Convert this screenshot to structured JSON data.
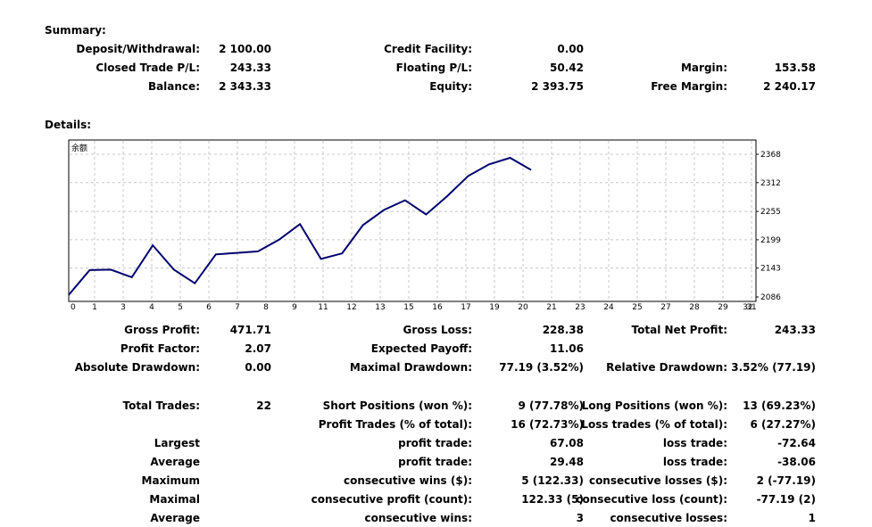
{
  "summary": {
    "title": "Summary:",
    "deposit_label": "Deposit/Withdrawal:",
    "deposit_value": "2 100.00",
    "credit_label": "Credit Facility:",
    "credit_value": "0.00",
    "closed_label": "Closed Trade P/L:",
    "closed_value": "243.33",
    "floating_label": "Floating P/L:",
    "floating_value": "50.42",
    "margin_label": "Margin:",
    "margin_value": "153.58",
    "balance_label": "Balance:",
    "balance_value": "2 343.33",
    "equity_label": "Equity:",
    "equity_value": "2 393.75",
    "free_margin_label": "Free Margin:",
    "free_margin_value": "2 240.17"
  },
  "details": {
    "title": "Details:"
  },
  "chart_data": {
    "type": "line",
    "title": "余额",
    "xlabel": "",
    "ylabel": "",
    "x_ticks": [
      0,
      1,
      3,
      4,
      5,
      6,
      7,
      8,
      9,
      11,
      12,
      13,
      15,
      16,
      17,
      19,
      20,
      21,
      23,
      24,
      25,
      27,
      28,
      29,
      31,
      32
    ],
    "y_ticks": [
      2368,
      2312,
      2255,
      2199,
      2143,
      2086
    ],
    "grid": true,
    "line_color": "#00006e",
    "series": [
      {
        "values": [
          2090,
          2139,
          2140,
          2125,
          2188,
          2140,
          2113,
          2170,
          2173,
          2176,
          2199,
          2230,
          2161,
          2172,
          2228,
          2258,
          2277,
          2249,
          2285,
          2325,
          2348,
          2361,
          2337
        ]
      }
    ]
  },
  "stats": {
    "gross_profit_label": "Gross Profit:",
    "gross_profit_value": "471.71",
    "gross_loss_label": "Gross Loss:",
    "gross_loss_value": "228.38",
    "net_profit_label": "Total Net Profit:",
    "net_profit_value": "243.33",
    "profit_factor_label": "Profit Factor:",
    "profit_factor_value": "2.07",
    "expected_payoff_label": "Expected Payoff:",
    "expected_payoff_value": "11.06",
    "abs_drawdown_label": "Absolute Drawdown:",
    "abs_drawdown_value": "0.00",
    "max_drawdown_label": "Maximal Drawdown:",
    "max_drawdown_value": "77.19 (3.52%)",
    "rel_drawdown_label": "Relative Drawdown:",
    "rel_drawdown_value": "3.52% (77.19)",
    "total_trades_label": "Total Trades:",
    "total_trades_value": "22",
    "short_label": "Short Positions (won %):",
    "short_value": "9 (77.78%)",
    "long_label": "Long Positions (won %):",
    "long_value": "13 (69.23%)",
    "profit_trades_label": "Profit Trades (% of total):",
    "profit_trades_value": "16 (72.73%)",
    "loss_trades_label": "Loss trades (% of total):",
    "loss_trades_value": "6 (27.27%)",
    "largest_label": "Largest",
    "largest_profit_label": "profit trade:",
    "largest_profit_value": "67.08",
    "largest_loss_label": "loss trade:",
    "largest_loss_value": "-72.64",
    "average_label": "Average",
    "average_profit_label": "profit trade:",
    "average_profit_value": "29.48",
    "average_loss_label": "loss trade:",
    "average_loss_value": "-38.06",
    "maximum_label": "Maximum",
    "max_cons_wins_label": "consecutive wins ($):",
    "max_cons_wins_value": "5 (122.33)",
    "max_cons_losses_label": "consecutive losses ($):",
    "max_cons_losses_value": "2 (-77.19)",
    "maximal_label": "Maximal",
    "maximal_cons_profit_label": "consecutive profit (count):",
    "maximal_cons_profit_value": "122.33 (5)",
    "maximal_cons_loss_label": "consecutive loss (count):",
    "maximal_cons_loss_value": "-77.19 (2)",
    "average2_label": "Average",
    "avg_cons_wins_label": "consecutive wins:",
    "avg_cons_wins_value": "3",
    "avg_cons_losses_label": "consecutive losses:",
    "avg_cons_losses_value": "1"
  }
}
